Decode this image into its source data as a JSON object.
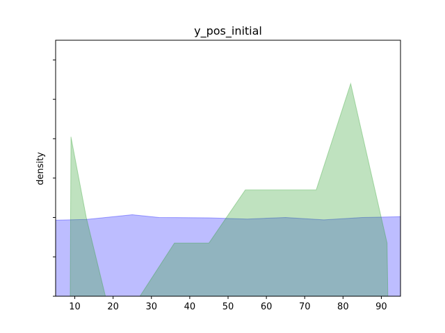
{
  "chart_data": {
    "type": "area",
    "title": "y_pos_initial",
    "xlabel": "",
    "ylabel": "density",
    "xlim": [
      5,
      95
    ],
    "ylim": [
      0,
      6.5
    ],
    "x_ticks": [
      10,
      20,
      30,
      40,
      50,
      60,
      70,
      80,
      90
    ],
    "y_ticks": [
      0,
      1,
      2,
      3,
      4,
      5,
      6
    ],
    "y_tick_labels_visible": false,
    "grid": false,
    "series": [
      {
        "color": "#0000ff",
        "fill_opacity": 0.26,
        "x": [
          5,
          13,
          18,
          25,
          32,
          45,
          55,
          65,
          75,
          85,
          95
        ],
        "y": [
          1.93,
          1.95,
          2.0,
          2.07,
          2.0,
          1.99,
          1.96,
          2.0,
          1.94,
          2.0,
          2.02
        ]
      },
      {
        "color": "#2ca02c",
        "fill_opacity": 0.3,
        "x": [
          8.8,
          9.0,
          13.0,
          18.0,
          27.0,
          36.0,
          45.0,
          54.5,
          73.0,
          82.0,
          91.5,
          91.7
        ],
        "y": [
          0,
          4.05,
          2.0,
          0,
          0,
          1.35,
          1.35,
          2.7,
          2.7,
          5.4,
          1.35,
          0
        ]
      }
    ]
  }
}
